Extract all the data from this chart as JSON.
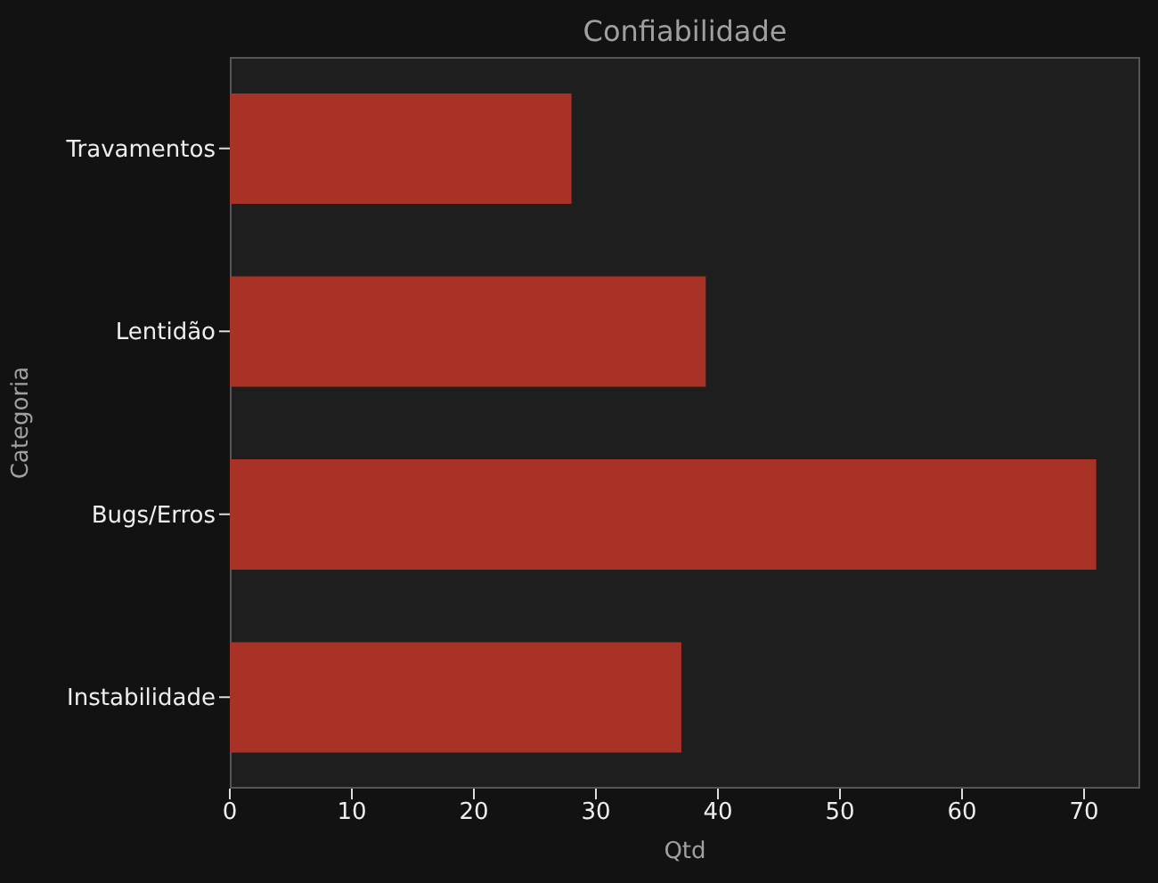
{
  "chart_data": {
    "type": "bar",
    "orientation": "horizontal",
    "title": "Confiabilidade",
    "xlabel": "Qtd",
    "ylabel": "Categoria",
    "categories": [
      "Travamentos",
      "Lentidão",
      "Bugs/Erros",
      "Instabilidade"
    ],
    "values": [
      28,
      39,
      71,
      37
    ],
    "color": "#a93226",
    "xlim": [
      0,
      74.6
    ],
    "xticks": [
      0,
      10,
      20,
      30,
      40,
      50,
      60,
      70
    ]
  }
}
